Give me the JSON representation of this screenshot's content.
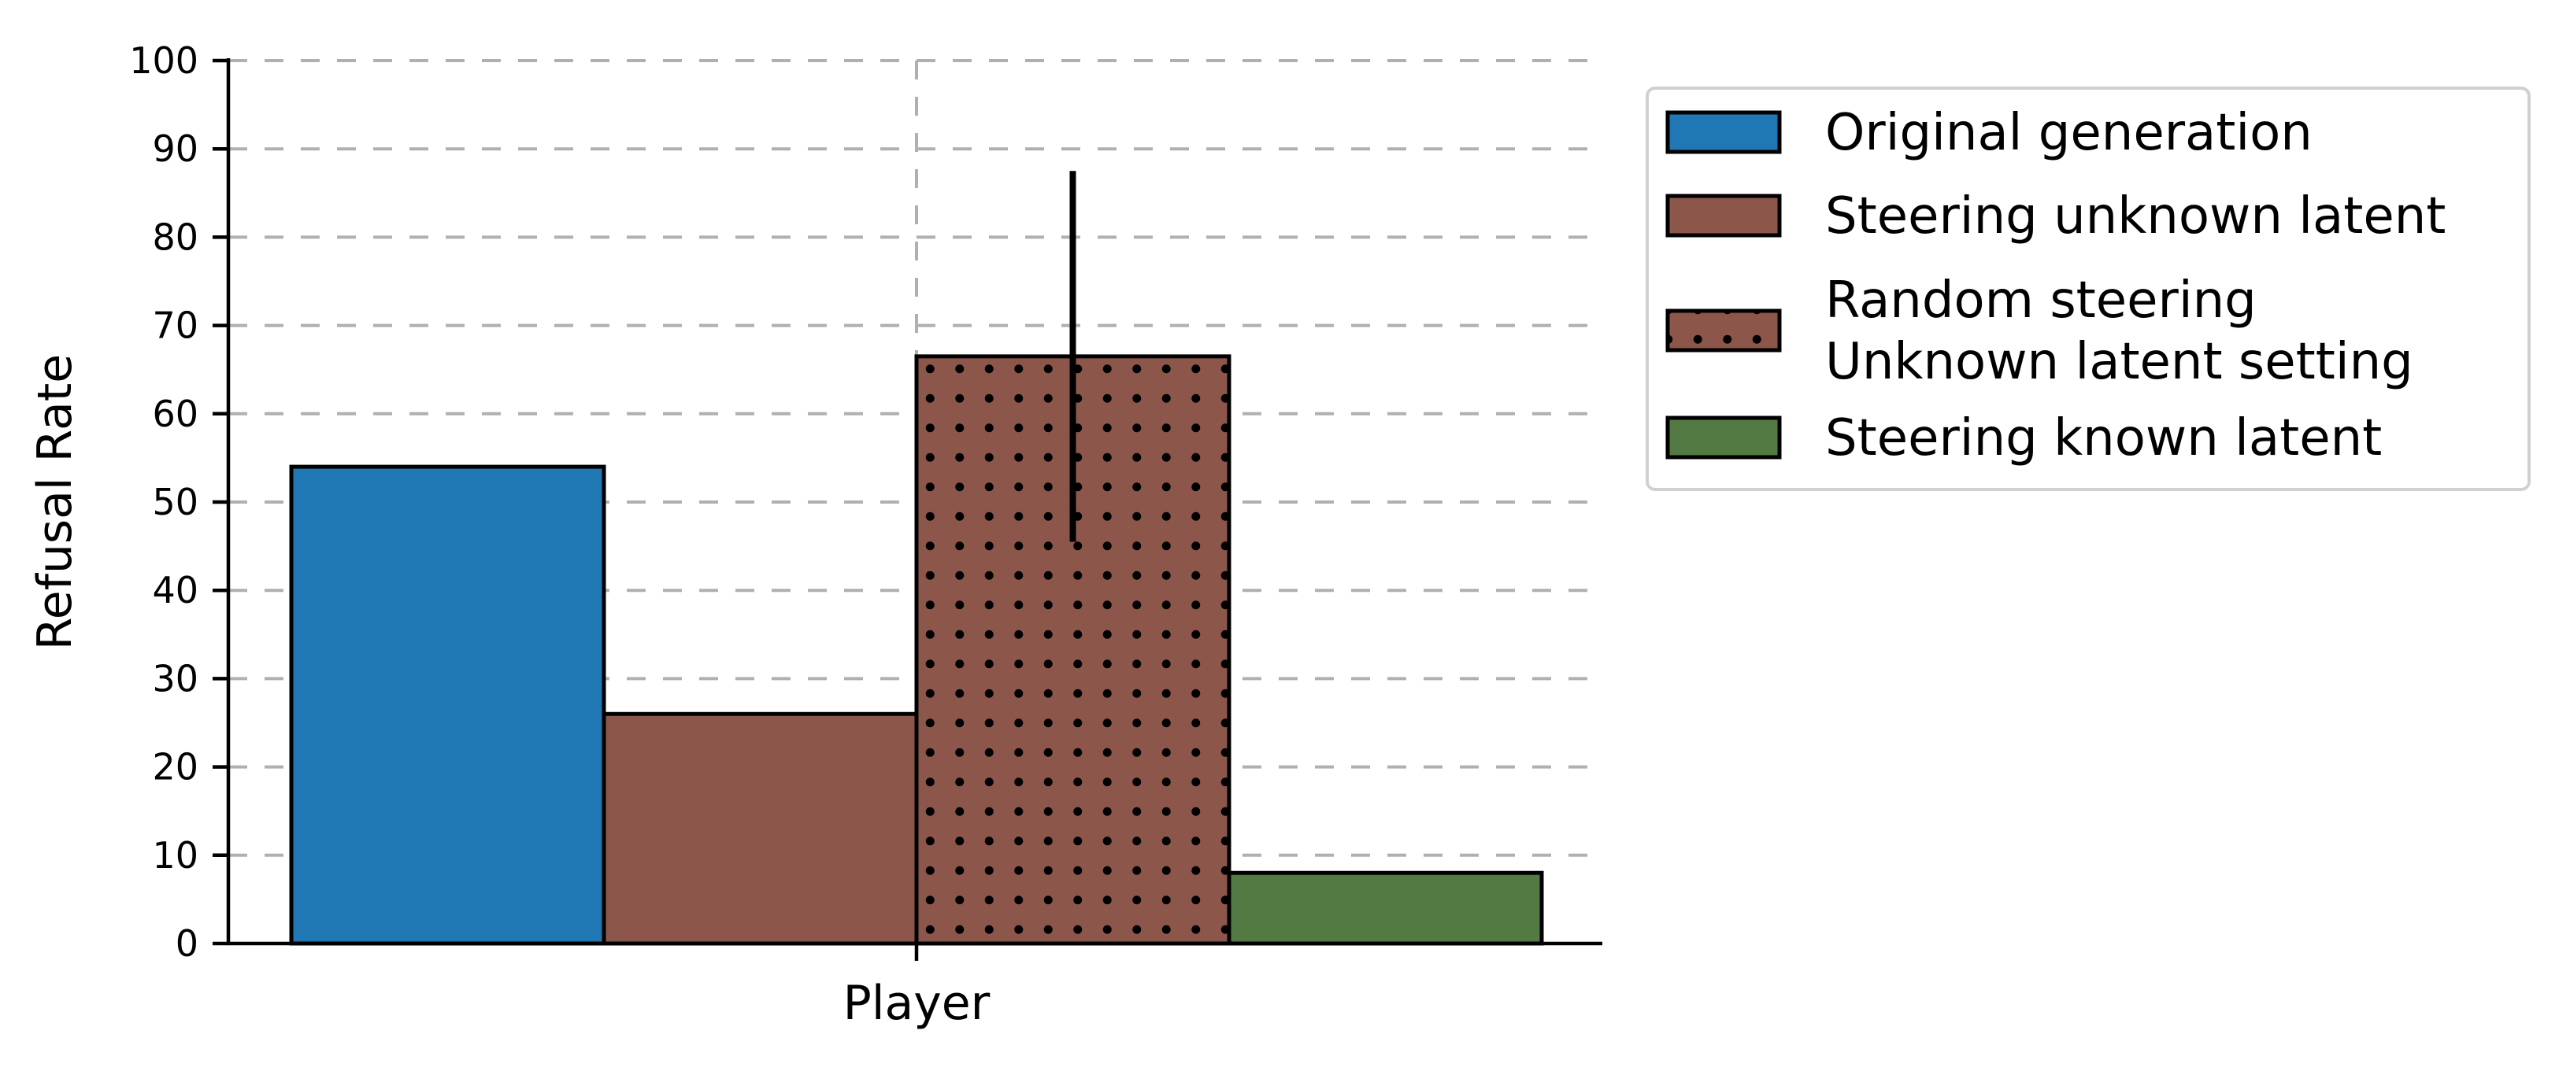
{
  "chart_data": {
    "type": "bar",
    "categories": [
      "Player"
    ],
    "xlabel": "Player",
    "ylabel": "Refusal Rate",
    "ylim": [
      0,
      100
    ],
    "yticks": [
      0,
      10,
      20,
      30,
      40,
      50,
      60,
      70,
      80,
      90,
      100
    ],
    "grid": true,
    "legend_position": "right, outside top",
    "series": [
      {
        "name": "Original generation",
        "values": [
          54
        ],
        "color": "#1f77b4",
        "pattern": "solid"
      },
      {
        "name": "Steering unknown latent",
        "values": [
          26
        ],
        "color": "#8c564b",
        "pattern": "solid"
      },
      {
        "name": "Random steering\nUnknown latent setting",
        "values": [
          66.5
        ],
        "color": "#8c564b",
        "pattern": "dots",
        "error": [
          45.5,
          87.5
        ]
      },
      {
        "name": "Steering known latent",
        "values": [
          8
        ],
        "color": "#537a42",
        "pattern": "solid"
      }
    ]
  }
}
